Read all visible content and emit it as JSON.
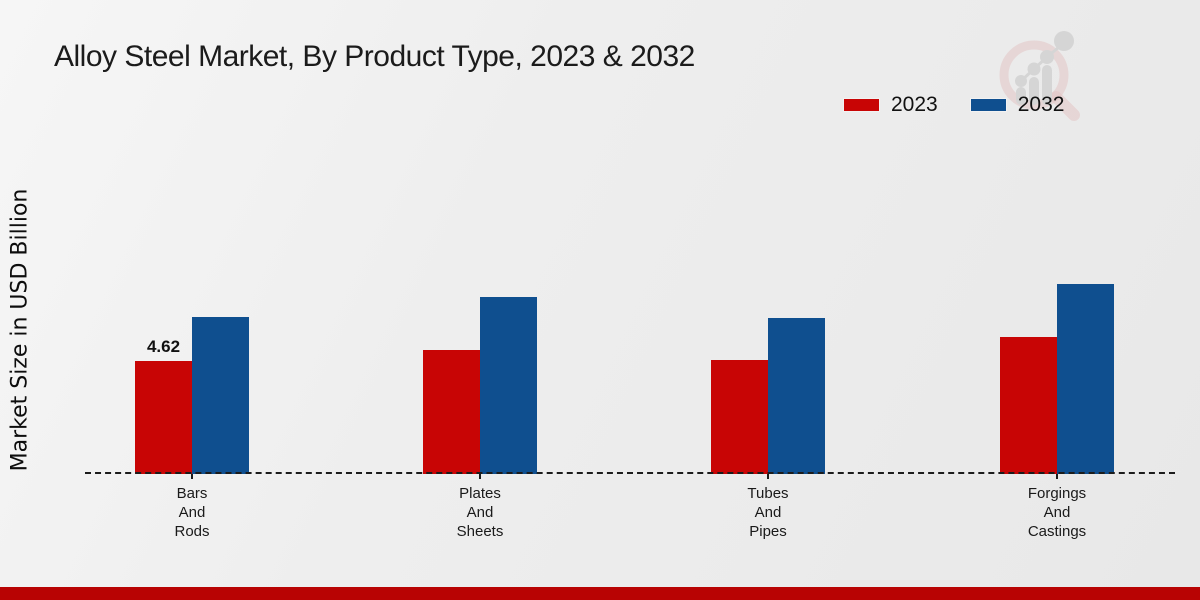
{
  "title": "Alloy Steel Market, By Product Type, 2023 & 2032",
  "y_axis_label": "Market Size in USD Billion",
  "legend": [
    {
      "label": "2023",
      "color": "#c80505"
    },
    {
      "label": "2032",
      "color": "#0f4f8f"
    }
  ],
  "watermark": {
    "name": "market-research-magnifier-logo"
  },
  "colors": {
    "series_2023": "#c80505",
    "series_2032": "#0f4f8f",
    "footer_band": "#b80303",
    "baseline": "#1c1c1c"
  },
  "chart_data": {
    "type": "bar",
    "title": "Alloy Steel Market, By Product Type, 2023 & 2032",
    "xlabel": "",
    "ylabel": "Market Size in USD Billion",
    "categories": [
      "Bars And Rods",
      "Plates And Sheets",
      "Tubes And Pipes",
      "Forgings And Castings"
    ],
    "category_lines": [
      [
        "Bars",
        "And",
        "Rods"
      ],
      [
        "Plates",
        "And",
        "Sheets"
      ],
      [
        "Tubes",
        "And",
        "Pipes"
      ],
      [
        "Forgings",
        "And",
        "Castings"
      ]
    ],
    "series": [
      {
        "name": "2023",
        "color": "#c80505",
        "values": [
          4.62,
          5.07,
          4.66,
          5.6
        ],
        "data_labels": [
          "4.62",
          "",
          "",
          ""
        ]
      },
      {
        "name": "2032",
        "color": "#0f4f8f",
        "values": [
          6.44,
          7.27,
          6.38,
          7.8
        ],
        "data_labels": [
          "",
          "",
          "",
          ""
        ]
      }
    ],
    "ylim": [
      0,
      8.5
    ],
    "grid": false,
    "axis_ticks_labeled": false,
    "legend_position": "top-right",
    "baseline_style": "dashed"
  }
}
